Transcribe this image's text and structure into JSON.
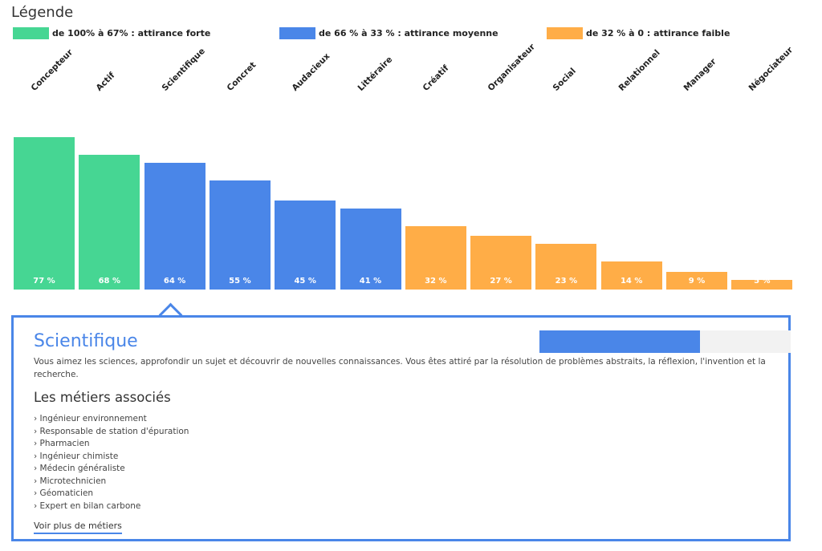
{
  "legend": {
    "title": "Légende",
    "items": [
      {
        "label": "de 100% à 67% : attirance forte",
        "color": "#46d693"
      },
      {
        "label": "de 66 % à 33 % : attirance moyenne",
        "color": "#4a86e8"
      },
      {
        "label": "de 32 % à 0 : attirance faible",
        "color": "#ffad47"
      }
    ]
  },
  "chart_data": {
    "type": "bar",
    "title": "",
    "xlabel": "",
    "ylabel": "",
    "ylim": [
      0,
      100
    ],
    "grid": false,
    "categories": [
      "Concepteur",
      "Actif",
      "Scientifique",
      "Concret",
      "Audacieux",
      "Littéraire",
      "Créatif",
      "Organisateur",
      "Social",
      "Relationnel",
      "Manager",
      "Négociateur"
    ],
    "values": [
      77,
      68,
      64,
      55,
      45,
      41,
      32,
      27,
      23,
      14,
      9,
      5
    ],
    "value_labels": [
      "77 %",
      "68 %",
      "64 %",
      "55 %",
      "45 %",
      "41 %",
      "32 %",
      "27 %",
      "23 %",
      "14 %",
      "9 %",
      "5 %"
    ],
    "colors": [
      "#46d693",
      "#46d693",
      "#4a86e8",
      "#4a86e8",
      "#4a86e8",
      "#4a86e8",
      "#ffad47",
      "#ffad47",
      "#ffad47",
      "#ffad47",
      "#ffad47",
      "#ffad47"
    ],
    "selected_index": 2
  },
  "detail": {
    "title": "Scientifique",
    "score_percent": 64,
    "description": "Vous aimez les sciences, approfondir un sujet et découvrir de nouvelles connaissances. Vous êtes attiré par la résolution de problèmes abstraits, la réflexion, l'invention et la recherche.",
    "jobs_title": "Les métiers associés",
    "jobs": [
      "› Ingénieur environnement",
      "› Responsable de station d'épuration",
      "› Pharmacien",
      "› Ingénieur chimiste",
      "› Médecin généraliste",
      "› Microtechnicien",
      "› Géomaticien",
      "› Expert en bilan carbone"
    ],
    "more_link": "Voir plus de métiers",
    "accent": "#4a86e8"
  }
}
